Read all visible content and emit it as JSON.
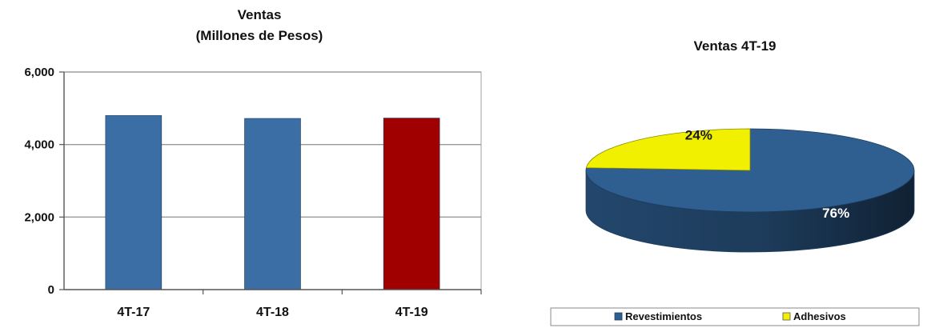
{
  "chart_data": [
    {
      "type": "bar",
      "title": "Ventas",
      "subtitle": "(Millones de Pesos)",
      "categories": [
        "4T-17",
        "4T-18",
        "4T-19"
      ],
      "values": [
        4800,
        4720,
        4730
      ],
      "bar_colors": [
        "#3a6ea5",
        "#3a6ea5",
        "#a00000"
      ],
      "ylim": [
        0,
        6000
      ],
      "yticks": [
        0,
        2000,
        4000,
        6000
      ],
      "ytick_labels": [
        "0",
        "2,000",
        "4,000",
        "6,000"
      ],
      "grid": true,
      "xlabel": "",
      "ylabel": ""
    },
    {
      "type": "pie",
      "title": "Ventas 4T-19",
      "slices": [
        {
          "name": "Revestimientos",
          "value": 76,
          "label": "76%",
          "color": "#2f5f91",
          "label_color": "#ffffff"
        },
        {
          "name": "Adhesivos",
          "value": 24,
          "label": "24%",
          "color": "#f0f000",
          "label_color": "#1a1a1a"
        }
      ],
      "legend_position": "bottom"
    }
  ]
}
